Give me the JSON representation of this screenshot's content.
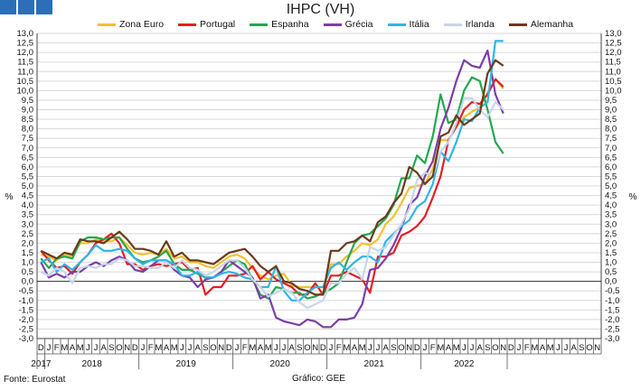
{
  "header": {
    "logo": "gee-logo"
  },
  "footer": {
    "source": "Fonte: Eurostat",
    "credit": "Gráfico: GEE"
  },
  "chart_data": {
    "type": "line",
    "title": "IHPC (VH)",
    "ylabel_left": "%",
    "ylabel_right": "%",
    "ylim": [
      -3.0,
      13.0
    ],
    "ytick_step": 0.5,
    "grid": true,
    "legend_position": "top",
    "month_letters": [
      "D",
      "J",
      "F",
      "M",
      "A",
      "M",
      "J",
      "J",
      "A",
      "S",
      "O",
      "N",
      "D",
      "J",
      "F",
      "M",
      "A",
      "M",
      "J",
      "J",
      "A",
      "S",
      "O",
      "N",
      "D",
      "J",
      "F",
      "M",
      "A",
      "M",
      "J",
      "J",
      "A",
      "S",
      "O",
      "N",
      "D",
      "J",
      "F",
      "M",
      "A",
      "M",
      "J",
      "J",
      "A",
      "S",
      "O",
      "N",
      "D",
      "J",
      "F",
      "M",
      "A",
      "M",
      "J",
      "J",
      "A",
      "S",
      "O",
      "N",
      "D",
      "J",
      "F",
      "M",
      "A",
      "M",
      "J",
      "J",
      "A",
      "S",
      "O",
      "N"
    ],
    "years": [
      {
        "label": "2017",
        "start": 0,
        "end": 0
      },
      {
        "label": "2018",
        "start": 1,
        "end": 12
      },
      {
        "label": "2019",
        "start": 13,
        "end": 24
      },
      {
        "label": "2020",
        "start": 25,
        "end": 36
      },
      {
        "label": "2021",
        "start": 37,
        "end": 48
      },
      {
        "label": "2022",
        "start": 49,
        "end": 59
      }
    ],
    "series": [
      {
        "name": "Zona Euro",
        "color": "#f2c12e",
        "values": [
          1.4,
          1.3,
          1.1,
          1.4,
          1.3,
          2.0,
          2.0,
          2.2,
          2.1,
          2.1,
          2.3,
          1.9,
          1.5,
          1.4,
          1.5,
          1.4,
          1.7,
          1.2,
          1.3,
          1.0,
          1.0,
          0.8,
          0.7,
          1.0,
          1.3,
          1.4,
          1.2,
          0.7,
          0.3,
          0.1,
          0.3,
          0.4,
          -0.2,
          -0.3,
          -0.3,
          -0.3,
          -0.3,
          0.9,
          0.9,
          1.3,
          1.6,
          2.0,
          1.9,
          2.2,
          3.0,
          3.4,
          4.1,
          4.9,
          5.0,
          5.1,
          5.9,
          7.4,
          7.4,
          8.1,
          8.6,
          8.9,
          9.1,
          9.9,
          10.6,
          10.1
        ]
      },
      {
        "name": "Portugal",
        "color": "#e31e24",
        "values": [
          1.6,
          1.1,
          0.7,
          0.8,
          0.4,
          1.0,
          1.4,
          2.0,
          2.2,
          2.5,
          2.0,
          0.9,
          0.9,
          0.6,
          0.8,
          0.9,
          0.8,
          0.9,
          1.0,
          0.6,
          0.7,
          -0.7,
          -0.3,
          -0.3,
          0.3,
          0.3,
          0.4,
          0.8,
          0.1,
          0.5,
          0.1,
          -0.1,
          -0.3,
          -0.7,
          -0.7,
          -0.1,
          -0.7,
          0.3,
          0.3,
          0.5,
          0.3,
          0.1,
          -0.6,
          1.3,
          1.3,
          1.5,
          2.4,
          2.6,
          2.9,
          3.4,
          4.4,
          5.5,
          7.4,
          8.1,
          9.0,
          9.4,
          9.3,
          9.8,
          10.6,
          10.2
        ]
      },
      {
        "name": "Espanha",
        "color": "#23a84f",
        "values": [
          1.2,
          0.7,
          1.2,
          1.3,
          1.2,
          2.1,
          2.3,
          2.3,
          2.2,
          2.3,
          2.3,
          1.7,
          1.2,
          1.0,
          1.1,
          1.3,
          1.6,
          0.9,
          0.6,
          0.6,
          0.4,
          0.2,
          0.2,
          0.5,
          0.8,
          1.1,
          0.9,
          0.1,
          -0.7,
          -0.9,
          -0.3,
          -0.4,
          -0.6,
          -0.6,
          -0.9,
          -0.8,
          -0.6,
          -0.4,
          -0.1,
          1.0,
          2.0,
          2.4,
          2.5,
          2.9,
          3.3,
          4.0,
          5.4,
          5.4,
          6.6,
          6.2,
          7.6,
          9.8,
          8.3,
          8.5,
          10.0,
          10.7,
          10.5,
          9.0,
          7.3,
          6.7
        ]
      },
      {
        "name": "Grécia",
        "color": "#7b3fa6",
        "values": [
          1.0,
          0.2,
          0.4,
          0.2,
          0.5,
          0.5,
          0.8,
          1.0,
          0.8,
          1.1,
          1.3,
          1.1,
          0.6,
          0.5,
          0.8,
          1.1,
          1.1,
          0.6,
          0.3,
          0.2,
          -0.3,
          0.1,
          0.2,
          0.5,
          1.1,
          0.8,
          0.5,
          0.2,
          -0.9,
          -0.7,
          -1.9,
          -2.1,
          -2.2,
          -2.3,
          -2.0,
          -2.1,
          -2.4,
          -2.4,
          -2.0,
          -2.0,
          -1.9,
          -1.2,
          0.6,
          0.7,
          1.2,
          1.9,
          2.8,
          4.0,
          4.4,
          5.5,
          6.3,
          8.0,
          9.1,
          10.5,
          11.6,
          11.3,
          11.2,
          12.1,
          9.8,
          8.8
        ]
      },
      {
        "name": "Itália",
        "color": "#2eb5e5",
        "values": [
          1.0,
          1.2,
          0.5,
          0.9,
          0.6,
          1.0,
          1.4,
          1.9,
          1.6,
          1.6,
          1.7,
          1.6,
          1.2,
          0.9,
          1.1,
          1.1,
          1.1,
          0.9,
          0.3,
          0.3,
          0.5,
          0.2,
          0.2,
          0.4,
          0.5,
          0.4,
          0.2,
          0.1,
          -0.3,
          -0.3,
          0.8,
          -0.5,
          -1.0,
          -1.0,
          -0.6,
          -0.3,
          -0.3,
          0.7,
          1.0,
          0.6,
          1.0,
          1.3,
          1.3,
          1.0,
          2.1,
          2.5,
          2.9,
          3.2,
          3.9,
          4.2,
          5.1,
          6.8,
          6.3,
          7.3,
          8.5,
          8.4,
          9.1,
          9.4,
          12.6,
          12.6
        ]
      },
      {
        "name": "Irlanda",
        "color": "#c8d5ea",
        "values": [
          0.5,
          0.3,
          0.7,
          0.5,
          -0.1,
          0.7,
          0.8,
          0.7,
          0.9,
          0.9,
          1.2,
          1.1,
          0.8,
          0.8,
          0.7,
          0.7,
          1.0,
          0.7,
          1.1,
          0.7,
          0.6,
          0.3,
          0.5,
          0.8,
          1.1,
          1.1,
          0.7,
          0.1,
          -0.3,
          -0.8,
          -0.6,
          -0.4,
          -0.6,
          -1.1,
          -1.4,
          -1.2,
          -1.0,
          -0.1,
          -0.1,
          0.4,
          0.7,
          0.1,
          1.8,
          1.6,
          1.8,
          2.4,
          3.0,
          3.8,
          5.3,
          5.7,
          5.5,
          6.8,
          7.3,
          8.3,
          9.6,
          9.6,
          9.0,
          8.6,
          9.4,
          9.0
        ]
      },
      {
        "name": "Alemanha",
        "color": "#6b3a1c",
        "values": [
          1.6,
          1.4,
          1.2,
          1.5,
          1.4,
          2.2,
          2.1,
          2.1,
          2.0,
          2.3,
          2.6,
          2.2,
          1.7,
          1.7,
          1.6,
          1.4,
          2.1,
          1.3,
          1.5,
          1.1,
          1.1,
          1.0,
          0.9,
          1.2,
          1.5,
          1.6,
          1.7,
          1.3,
          0.8,
          0.5,
          0.8,
          0.0,
          -0.1,
          -0.4,
          -0.5,
          -0.7,
          -0.7,
          1.6,
          1.6,
          2.0,
          2.1,
          2.4,
          2.1,
          3.1,
          3.4,
          4.1,
          4.6,
          6.0,
          5.7,
          5.1,
          5.5,
          7.6,
          7.8,
          8.7,
          8.2,
          8.5,
          8.8,
          10.9,
          11.6,
          11.3
        ]
      }
    ]
  }
}
